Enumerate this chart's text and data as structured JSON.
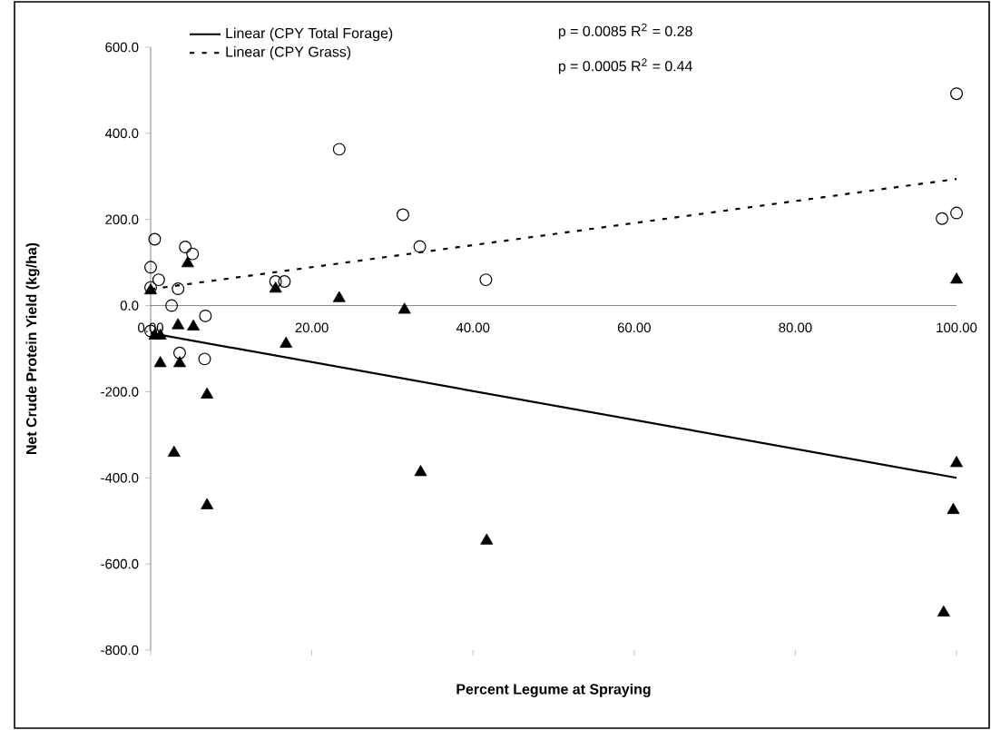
{
  "chart_data": {
    "type": "scatter",
    "xlabel": "Percent Legume at Spraying",
    "ylabel": "Net Crude Protein Yield (kg/ha)",
    "xlim": [
      0,
      100
    ],
    "ylim": [
      -800,
      600
    ],
    "xticks": [
      {
        "value": 0,
        "label": "0.00"
      },
      {
        "value": 20,
        "label": "20.00"
      },
      {
        "value": 40,
        "label": "40.00"
      },
      {
        "value": 60,
        "label": "60.00"
      },
      {
        "value": 80,
        "label": "80.00"
      },
      {
        "value": 100,
        "label": "100.00"
      }
    ],
    "yticks": [
      {
        "value": -800,
        "label": "-800.0"
      },
      {
        "value": -600,
        "label": "-600.0"
      },
      {
        "value": -400,
        "label": "-400.0"
      },
      {
        "value": -200,
        "label": "-200.0"
      },
      {
        "value": 0,
        "label": "0.0"
      },
      {
        "value": 200,
        "label": "200.0"
      },
      {
        "value": 400,
        "label": "400.0"
      },
      {
        "value": 600,
        "label": "600.0"
      }
    ],
    "grid": false,
    "legend": "top left",
    "annotations": [
      "p = 0.0085 R$^{2}$ = 0.28",
      "p = 0.0005 R$^{2}$ = 0.44"
    ],
    "series": [
      {
        "type": "scatter",
        "marker": "circle",
        "color": "#000000",
        "x": [
          0.5,
          0,
          1,
          0,
          4.3,
          5.2,
          3.4,
          2.6,
          6.8,
          0,
          3.6,
          6.7,
          15.5,
          16.6,
          23.4,
          31.3,
          33.4,
          41.6,
          98.2,
          100,
          100
        ],
        "values": [
          154,
          89,
          60,
          42,
          136,
          120,
          39,
          0,
          -24,
          -59,
          -110,
          -124,
          56,
          56,
          363,
          211,
          137,
          60,
          202,
          215,
          492
        ]
      },
      {
        "type": "scatter",
        "marker": "triangle",
        "color": "#000000",
        "x": [
          4.6,
          23.4,
          0.5,
          1.2,
          3.4,
          5.3,
          1.2,
          3.6,
          7,
          2.9,
          7,
          16.8,
          31.5,
          33.5,
          41.7,
          100,
          100,
          99.6,
          98.4,
          15.5,
          0
        ],
        "values": [
          98,
          17,
          -70,
          -70,
          -46,
          -49,
          -134,
          -134,
          -207,
          -342,
          -464,
          -89,
          -10,
          -387,
          -546,
          60,
          -366,
          -475,
          -713,
          39,
          35
        ]
      },
      {
        "type": "line",
        "name": "Linear (CPY Total Forage)",
        "marker": "none",
        "line_style": "solid",
        "color": "#000000",
        "x": [
          0,
          100
        ],
        "values": [
          -64,
          -400
        ]
      },
      {
        "type": "line",
        "name": "Linear (CPY Grass)",
        "marker": "none",
        "line_style": "dotted",
        "color": "#000000",
        "x": [
          0,
          100
        ],
        "values": [
          38,
          294
        ]
      }
    ]
  }
}
